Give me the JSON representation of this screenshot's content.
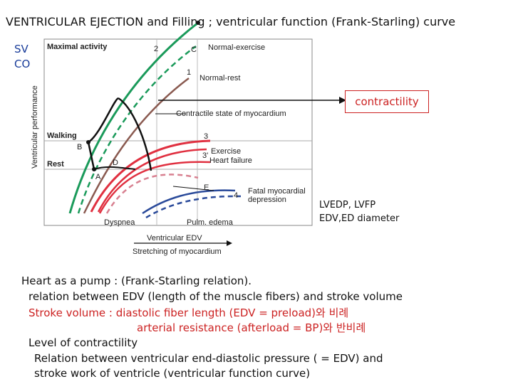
{
  "title": "VENTRICULAR EJECTION and Filling ; ventricular function (Frank-Starling) curve",
  "axis_side": {
    "sv": "SV",
    "co": "CO"
  },
  "figure": {
    "y_axis_label": "Ventricular performance",
    "x_axis_label_1": "Ventricular EDV",
    "x_axis_label_2": "Stretching of myocardium",
    "maximal_activity": "Maximal activity",
    "walking": "Walking",
    "rest": "Rest",
    "dyspnea": "Dyspnea",
    "pulm_edema": "Pulm. edema",
    "contractile_state": "Contractile state of myocardium",
    "curves": {
      "normal_exercise": "Normal-exercise",
      "normal_rest": "Normal-rest",
      "exercise": "Exercise",
      "heart_failure": "Heart failure",
      "fatal_1": "Fatal myocardial",
      "fatal_2": "depression"
    },
    "numbers": {
      "n1": "1",
      "n2": "2",
      "n3": "3",
      "n3p": "3'",
      "n4": "4"
    },
    "points": {
      "a": "A",
      "b": "B",
      "c": "C",
      "d": "D",
      "e": "E"
    },
    "colors": {
      "green": "#1a9a5a",
      "brown": "#8a5a50",
      "red": "#e03040",
      "pink": "#d88090",
      "blue": "#2a4a9a"
    }
  },
  "callouts": {
    "contractility": "contractility",
    "lvedp": "LVEDP, LVFP",
    "edv_diameter": "EDV,ED diameter"
  },
  "text_block": {
    "line1": "Heart as a pump : (Frank-Starling relation).",
    "line2": "relation between EDV (length of the muscle fibers) and stroke volume",
    "line3": "Stroke volume : diastolic fiber length (EDV = preload)와 비례",
    "line4": "arterial resistance (afterload = BP)와 반비례",
    "line5": "Level of contractility",
    "line6": "Relation between ventricular end-diastolic pressure ( = EDV) and",
    "line7": "stroke work of ventricle (ventricular function curve)"
  }
}
